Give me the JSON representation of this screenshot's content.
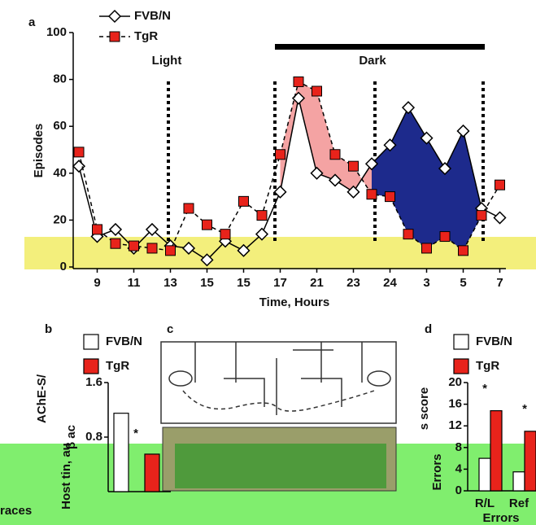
{
  "chart_data": [
    {
      "type": "line",
      "panel_label": "a",
      "y_label": "Episodes",
      "x_label": "Time, Hours",
      "annotations": [
        "Light",
        "Dark"
      ],
      "categories": [
        null,
        "9",
        null,
        "11",
        null,
        "13",
        null,
        "15",
        null,
        "15",
        null,
        "17",
        null,
        "21",
        null,
        "23",
        null,
        "24",
        null,
        "3",
        null,
        "5",
        null,
        "7"
      ],
      "series": [
        {
          "name": "FVB/N",
          "color": "#ffffff",
          "marker": "diamond",
          "dash": false,
          "values": [
            43,
            13,
            16,
            8,
            16,
            9,
            8,
            3,
            11,
            7,
            14,
            32,
            72,
            40,
            37,
            32,
            44,
            52,
            68,
            55,
            42,
            58,
            25,
            21
          ]
        },
        {
          "name": "TgR",
          "color": "#e8231b",
          "marker": "square",
          "dash": true,
          "values": [
            49,
            16,
            10,
            9,
            8,
            7,
            25,
            18,
            14,
            28,
            22,
            48,
            79,
            75,
            48,
            43,
            31,
            30,
            14,
            8,
            13,
            7,
            22,
            35
          ]
        }
      ],
      "ylim": [
        0,
        100
      ],
      "yticks": [
        0,
        20,
        40,
        60,
        80,
        100
      ]
    },
    {
      "type": "bar",
      "panel_label": "b",
      "y_label_texts": [
        "AChE-S/",
        "β ac",
        "Host tin, au"
      ],
      "x_label": "races",
      "annotations": [
        "*"
      ],
      "categories": [
        null
      ],
      "series": [
        {
          "name": "FVB/N",
          "color": "#ffffff",
          "values": [
            1.15
          ]
        },
        {
          "name": "TgR",
          "color": "#e8231b",
          "values": [
            0.55
          ]
        }
      ],
      "ylim": [
        0,
        1.6
      ],
      "yticks": [
        0.8,
        1.6
      ]
    },
    {
      "type": "bar",
      "panel_label": "d",
      "y_label_texts": [
        "s score",
        "Errors"
      ],
      "x_label": "Errors",
      "annotations": [
        "*",
        "*"
      ],
      "categories": [
        "R/L",
        "Ref"
      ],
      "series": [
        {
          "name": "FVB/N",
          "color": "#ffffff",
          "values": [
            6,
            3.5
          ]
        },
        {
          "name": "TgR",
          "color": "#e8231b",
          "values": [
            14.8,
            11
          ]
        }
      ],
      "ylim": [
        0,
        20
      ],
      "yticks": [
        0,
        4,
        8,
        12,
        16,
        20
      ]
    }
  ]
}
